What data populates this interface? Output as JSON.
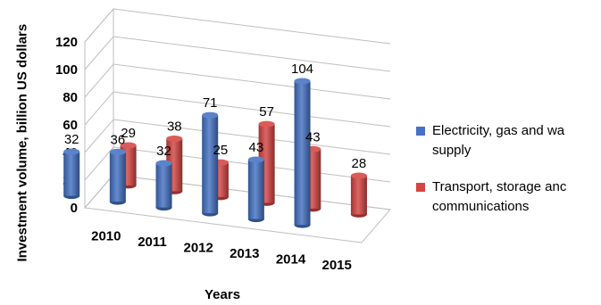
{
  "chart_data": {
    "type": "bar",
    "categories": [
      "2010",
      "2011",
      "2012",
      "2013",
      "2014",
      "2015"
    ],
    "series": [
      {
        "name": "Electricity, gas and water supply",
        "legend_lines": [
          "Electricity, gas and wa",
          "supply"
        ],
        "color": "#4472C4",
        "values": [
          32,
          36,
          32,
          71,
          43,
          104
        ]
      },
      {
        "name": "Transport, storage and communications",
        "legend_lines": [
          "Transport, storage anc",
          "communications"
        ],
        "color": "#D64541",
        "values": [
          29,
          38,
          25,
          57,
          43,
          28
        ]
      }
    ],
    "ylim": [
      0,
      120
    ],
    "yticks": [
      "0",
      "20",
      "40",
      "60",
      "80",
      "100",
      "120"
    ],
    "ylabel": "Investment volume, billion US dollars",
    "xlabel": "Years",
    "grid": true,
    "legend": "right",
    "style": "3d-cylinder"
  }
}
